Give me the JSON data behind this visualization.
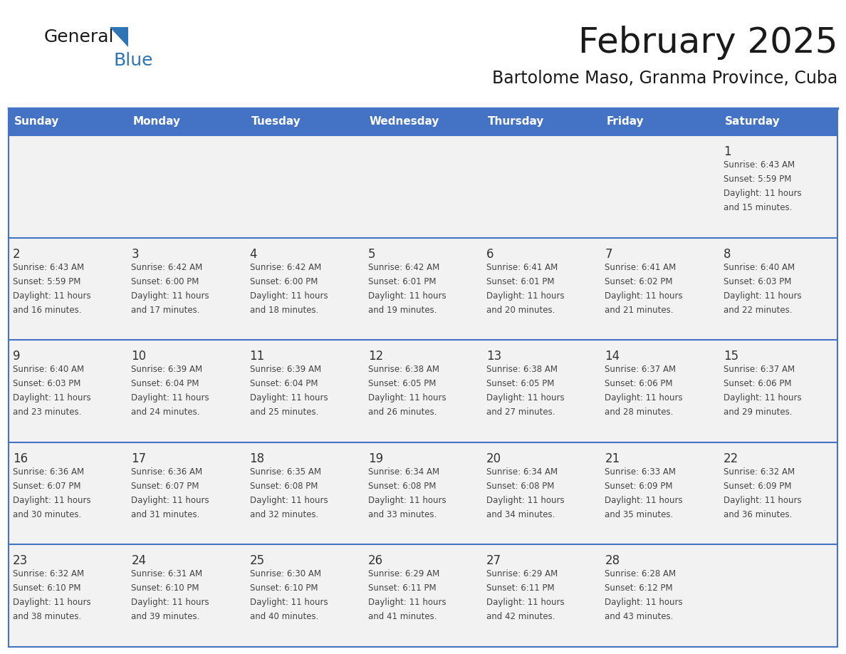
{
  "title": "February 2025",
  "subtitle": "Bartolome Maso, Granma Province, Cuba",
  "days_of_week": [
    "Sunday",
    "Monday",
    "Tuesday",
    "Wednesday",
    "Thursday",
    "Friday",
    "Saturday"
  ],
  "header_bg": "#4472C4",
  "header_text": "#FFFFFF",
  "cell_bg": "#F2F2F2",
  "cell_border_color": "#4472C4",
  "text_color": "#444444",
  "day_num_color": "#333333",
  "logo_general_color": "#1a1a1a",
  "logo_blue_color": "#2E75B6",
  "title_color": "#1a1a1a",
  "subtitle_color": "#1a1a1a",
  "num_rows": 5,
  "num_cols": 7,
  "calendar_data": [
    [
      {
        "day": null,
        "sunrise": null,
        "sunset": null,
        "daylight": null
      },
      {
        "day": null,
        "sunrise": null,
        "sunset": null,
        "daylight": null
      },
      {
        "day": null,
        "sunrise": null,
        "sunset": null,
        "daylight": null
      },
      {
        "day": null,
        "sunrise": null,
        "sunset": null,
        "daylight": null
      },
      {
        "day": null,
        "sunrise": null,
        "sunset": null,
        "daylight": null
      },
      {
        "day": null,
        "sunrise": null,
        "sunset": null,
        "daylight": null
      },
      {
        "day": 1,
        "sunrise": "6:43 AM",
        "sunset": "5:59 PM",
        "daylight": "11 hours and 15 minutes."
      }
    ],
    [
      {
        "day": 2,
        "sunrise": "6:43 AM",
        "sunset": "5:59 PM",
        "daylight": "11 hours and 16 minutes."
      },
      {
        "day": 3,
        "sunrise": "6:42 AM",
        "sunset": "6:00 PM",
        "daylight": "11 hours and 17 minutes."
      },
      {
        "day": 4,
        "sunrise": "6:42 AM",
        "sunset": "6:00 PM",
        "daylight": "11 hours and 18 minutes."
      },
      {
        "day": 5,
        "sunrise": "6:42 AM",
        "sunset": "6:01 PM",
        "daylight": "11 hours and 19 minutes."
      },
      {
        "day": 6,
        "sunrise": "6:41 AM",
        "sunset": "6:01 PM",
        "daylight": "11 hours and 20 minutes."
      },
      {
        "day": 7,
        "sunrise": "6:41 AM",
        "sunset": "6:02 PM",
        "daylight": "11 hours and 21 minutes."
      },
      {
        "day": 8,
        "sunrise": "6:40 AM",
        "sunset": "6:03 PM",
        "daylight": "11 hours and 22 minutes."
      }
    ],
    [
      {
        "day": 9,
        "sunrise": "6:40 AM",
        "sunset": "6:03 PM",
        "daylight": "11 hours and 23 minutes."
      },
      {
        "day": 10,
        "sunrise": "6:39 AM",
        "sunset": "6:04 PM",
        "daylight": "11 hours and 24 minutes."
      },
      {
        "day": 11,
        "sunrise": "6:39 AM",
        "sunset": "6:04 PM",
        "daylight": "11 hours and 25 minutes."
      },
      {
        "day": 12,
        "sunrise": "6:38 AM",
        "sunset": "6:05 PM",
        "daylight": "11 hours and 26 minutes."
      },
      {
        "day": 13,
        "sunrise": "6:38 AM",
        "sunset": "6:05 PM",
        "daylight": "11 hours and 27 minutes."
      },
      {
        "day": 14,
        "sunrise": "6:37 AM",
        "sunset": "6:06 PM",
        "daylight": "11 hours and 28 minutes."
      },
      {
        "day": 15,
        "sunrise": "6:37 AM",
        "sunset": "6:06 PM",
        "daylight": "11 hours and 29 minutes."
      }
    ],
    [
      {
        "day": 16,
        "sunrise": "6:36 AM",
        "sunset": "6:07 PM",
        "daylight": "11 hours and 30 minutes."
      },
      {
        "day": 17,
        "sunrise": "6:36 AM",
        "sunset": "6:07 PM",
        "daylight": "11 hours and 31 minutes."
      },
      {
        "day": 18,
        "sunrise": "6:35 AM",
        "sunset": "6:08 PM",
        "daylight": "11 hours and 32 minutes."
      },
      {
        "day": 19,
        "sunrise": "6:34 AM",
        "sunset": "6:08 PM",
        "daylight": "11 hours and 33 minutes."
      },
      {
        "day": 20,
        "sunrise": "6:34 AM",
        "sunset": "6:08 PM",
        "daylight": "11 hours and 34 minutes."
      },
      {
        "day": 21,
        "sunrise": "6:33 AM",
        "sunset": "6:09 PM",
        "daylight": "11 hours and 35 minutes."
      },
      {
        "day": 22,
        "sunrise": "6:32 AM",
        "sunset": "6:09 PM",
        "daylight": "11 hours and 36 minutes."
      }
    ],
    [
      {
        "day": 23,
        "sunrise": "6:32 AM",
        "sunset": "6:10 PM",
        "daylight": "11 hours and 38 minutes."
      },
      {
        "day": 24,
        "sunrise": "6:31 AM",
        "sunset": "6:10 PM",
        "daylight": "11 hours and 39 minutes."
      },
      {
        "day": 25,
        "sunrise": "6:30 AM",
        "sunset": "6:10 PM",
        "daylight": "11 hours and 40 minutes."
      },
      {
        "day": 26,
        "sunrise": "6:29 AM",
        "sunset": "6:11 PM",
        "daylight": "11 hours and 41 minutes."
      },
      {
        "day": 27,
        "sunrise": "6:29 AM",
        "sunset": "6:11 PM",
        "daylight": "11 hours and 42 minutes."
      },
      {
        "day": 28,
        "sunrise": "6:28 AM",
        "sunset": "6:12 PM",
        "daylight": "11 hours and 43 minutes."
      },
      {
        "day": null,
        "sunrise": null,
        "sunset": null,
        "daylight": null
      }
    ]
  ]
}
